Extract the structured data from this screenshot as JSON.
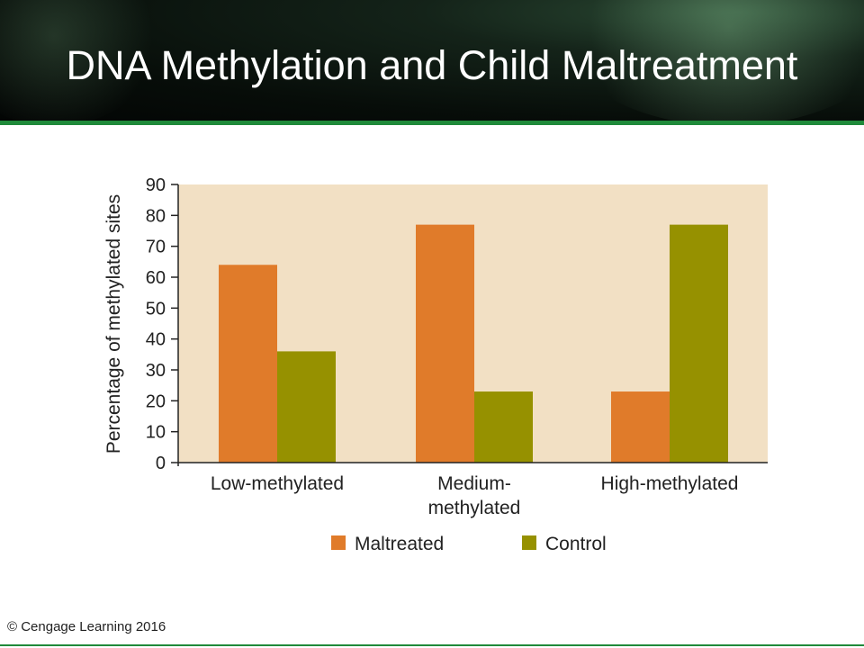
{
  "slide": {
    "title": "DNA Methylation and Child Maltreatment",
    "copyright": "© Cengage Learning 2016"
  },
  "colors": {
    "header_bg": "#0a120d",
    "accent_rule": "#1f8a3a",
    "plot_bg": "#f2e0c4",
    "maltreated": "#e07b2a",
    "control": "#969100"
  },
  "chart_data": {
    "type": "bar",
    "categories": [
      [
        "Low-methylated"
      ],
      [
        "Medium-",
        "methylated"
      ],
      [
        "High-methylated"
      ]
    ],
    "series": [
      {
        "name": "Maltreated",
        "values": [
          64,
          77,
          23
        ]
      },
      {
        "name": "Control",
        "values": [
          36,
          23,
          77
        ]
      }
    ],
    "ylabel": "Percentage of methylated sites",
    "ylim": [
      0,
      90
    ],
    "yticks": [
      0,
      10,
      20,
      30,
      40,
      50,
      60,
      70,
      80,
      90
    ],
    "grid": false,
    "legend": "bottom"
  }
}
